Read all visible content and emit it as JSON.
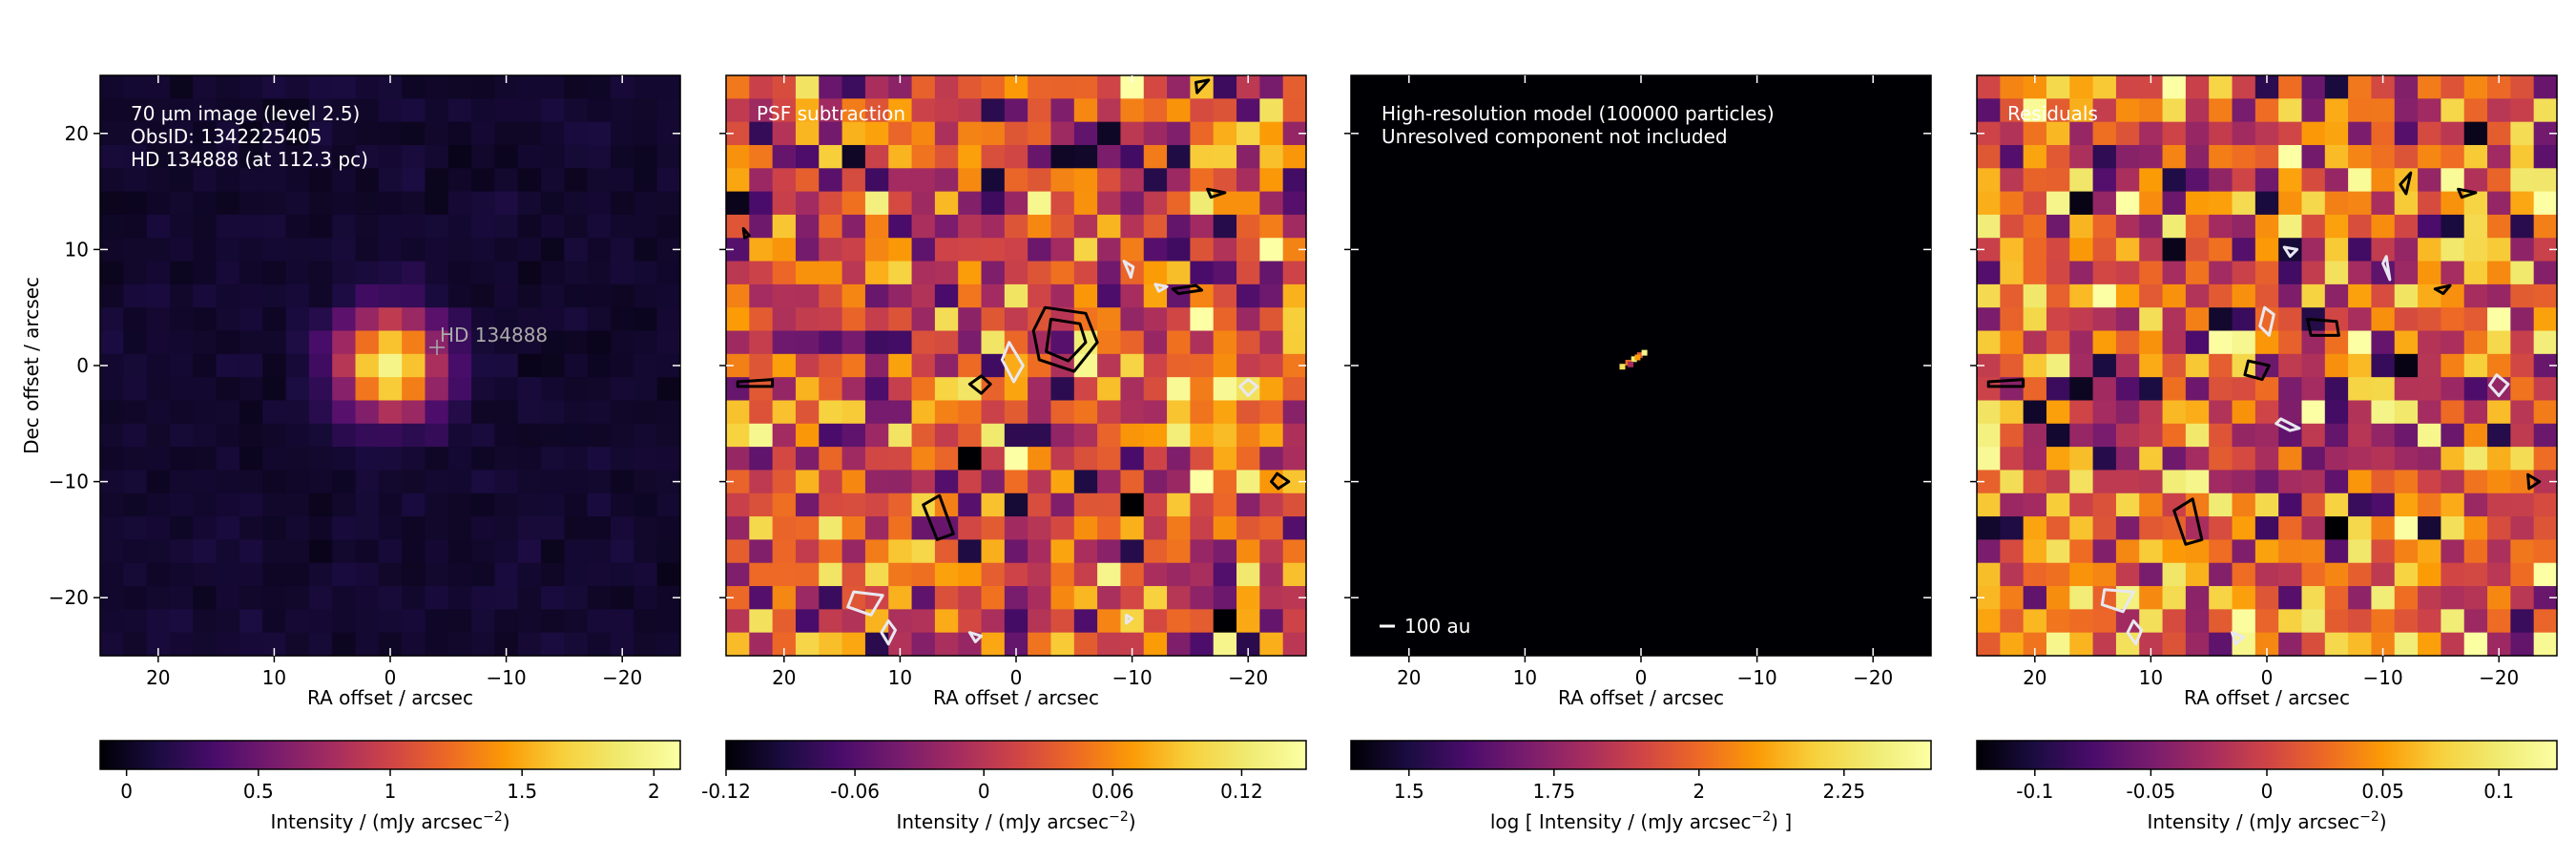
{
  "chart_data": [
    {
      "type": "heatmap",
      "panel": "observation",
      "annotations": [
        "70 µm image (level 2.5)",
        "ObsID: 1342225405",
        "HD 134888 (at 112.3 pc)"
      ],
      "source_label": "HD 134888",
      "xlabel": "RA offset / arcsec",
      "ylabel": "Dec offset / arcsec",
      "x_range": [
        25,
        -25
      ],
      "y_range": [
        -25,
        25
      ],
      "x_ticks": [
        20,
        10,
        0,
        -10,
        -20
      ],
      "x_tick_labels": [
        "20",
        "10",
        "0",
        "−10",
        "−20"
      ],
      "y_ticks": [
        20,
        10,
        0,
        -10,
        -20
      ],
      "y_tick_labels": [
        "20",
        "10",
        "0",
        "−10",
        "−20"
      ],
      "colormap": "inferno",
      "source_peak_offset_arcsec": [
        0,
        0
      ],
      "colorbar": {
        "label_main": "Intensity / (mJy arcsec",
        "label_exp": "−2",
        "label_end": ")",
        "range": [
          -0.1,
          2.1
        ],
        "ticks": [
          0,
          0.5,
          1,
          1.5,
          2
        ],
        "tick_labels": [
          "0",
          "0.5",
          "1",
          "1.5",
          "2"
        ]
      }
    },
    {
      "type": "heatmap",
      "panel": "psf-subtraction",
      "annotations": [
        "PSF subtraction"
      ],
      "xlabel": "RA offset / arcsec",
      "x_range": [
        25,
        -25
      ],
      "y_range": [
        -25,
        25
      ],
      "x_ticks": [
        20,
        10,
        0,
        -10,
        -20
      ],
      "x_tick_labels": [
        "20",
        "10",
        "0",
        "−10",
        "−20"
      ],
      "colormap": "inferno",
      "colorbar": {
        "label_main": "Intensity / (mJy arcsec",
        "label_exp": "−2",
        "label_end": ")",
        "range": [
          -0.12,
          0.15
        ],
        "ticks": [
          -0.12,
          -0.06,
          0,
          0.06,
          0.12
        ],
        "tick_labels": [
          "-0.12",
          "-0.06",
          "0",
          "0.06",
          "0.12"
        ]
      }
    },
    {
      "type": "heatmap",
      "panel": "model",
      "annotations": [
        "High-resolution model (100000 particles)",
        "Unresolved component not included"
      ],
      "scalebar_label": "100 au",
      "xlabel": "RA offset / arcsec",
      "x_range": [
        25,
        -25
      ],
      "y_range": [
        -25,
        25
      ],
      "x_ticks": [
        20,
        10,
        0,
        -10,
        -20
      ],
      "x_tick_labels": [
        "20",
        "10",
        "0",
        "−10",
        "−20"
      ],
      "colormap": "inferno",
      "colorbar": {
        "label_main": "log [ Intensity / (mJy arcsec",
        "label_exp": "−2",
        "label_end": ") ]",
        "range": [
          1.4,
          2.4
        ],
        "ticks": [
          1.5,
          1.75,
          2,
          2.25
        ],
        "tick_labels": [
          "1.5",
          "1.75",
          "2",
          "2.25"
        ]
      }
    },
    {
      "type": "heatmap",
      "panel": "residuals",
      "annotations": [
        "Residuals"
      ],
      "xlabel": "RA offset / arcsec",
      "x_range": [
        25,
        -25
      ],
      "y_range": [
        -25,
        25
      ],
      "x_ticks": [
        20,
        10,
        0,
        -10,
        -20
      ],
      "x_tick_labels": [
        "20",
        "10",
        "0",
        "−10",
        "−20"
      ],
      "colormap": "inferno",
      "colorbar": {
        "label_main": "Intensity / (mJy arcsec",
        "label_exp": "−2",
        "label_end": ")",
        "range": [
          -0.125,
          0.125
        ],
        "ticks": [
          -0.1,
          -0.05,
          0,
          0.05,
          0.1
        ],
        "tick_labels": [
          "-0.1",
          "-0.05",
          "0",
          "0.05",
          "0.1"
        ]
      }
    }
  ]
}
